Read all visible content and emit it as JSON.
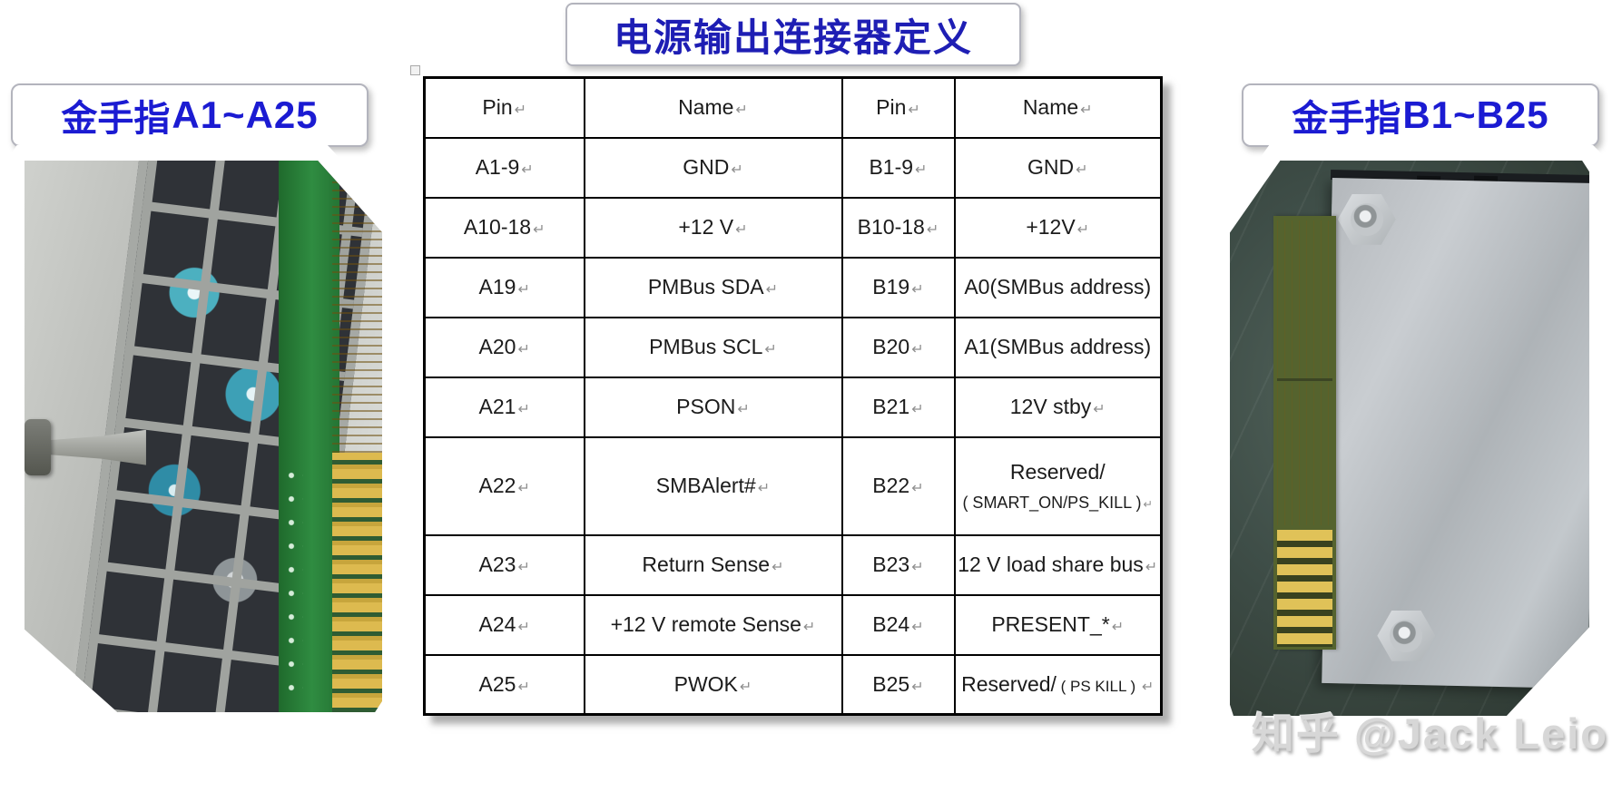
{
  "title": "电源输出连接器定义",
  "labels": {
    "left": {
      "zh": "金手指",
      "range": "A1~A25"
    },
    "right": {
      "zh": "金手指",
      "range": "B1~B25"
    }
  },
  "marks": {
    "char": "↵"
  },
  "table": {
    "headers": [
      "Pin",
      "Name",
      "Pin",
      "Name"
    ],
    "rows": [
      [
        {
          "t": "A1-9"
        },
        {
          "t": "GND"
        },
        {
          "t": "B1-9"
        },
        {
          "t": "GND"
        }
      ],
      [
        {
          "t": "A10-18"
        },
        {
          "t": "+12 V"
        },
        {
          "t": "B10-18"
        },
        {
          "t": "+12V"
        }
      ],
      [
        {
          "t": "A19"
        },
        {
          "t": "PMBus SDA"
        },
        {
          "t": "B19"
        },
        {
          "t": "A0(SMBus address)",
          "m": false
        }
      ],
      [
        {
          "t": "A20"
        },
        {
          "t": "PMBus SCL"
        },
        {
          "t": "B20"
        },
        {
          "t": "A1(SMBus address)",
          "m": false
        }
      ],
      [
        {
          "t": "A21"
        },
        {
          "t": "PSON"
        },
        {
          "t": "B21"
        },
        {
          "t": "12V stby"
        }
      ],
      [
        {
          "t": "A22"
        },
        {
          "t": "SMBAlert#"
        },
        {
          "t": "B22"
        },
        {
          "lines": [
            "Reserved/",
            "( SMART_ON/PS_KILL )"
          ],
          "tall": true
        }
      ],
      [
        {
          "t": "A23"
        },
        {
          "t": "Return Sense"
        },
        {
          "t": "B23"
        },
        {
          "t": "12 V load share bus"
        }
      ],
      [
        {
          "t": "A24"
        },
        {
          "t": "+12 V remote Sense"
        },
        {
          "t": "B24"
        },
        {
          "t": "PRESENT_*"
        }
      ],
      [
        {
          "t": "A25"
        },
        {
          "t": "PWOK"
        },
        {
          "t": "B25"
        },
        {
          "t": "Reserved/",
          "small": "( PS KILL )"
        }
      ]
    ]
  },
  "photos": {
    "left_caption_semantic": "gold-finger edge connector A1~A25 behind PSU grille",
    "right_caption_semantic": "gold-finger edge connector B1~B25 beside PSU case"
  },
  "watermark": "知乎 @Jack Leio",
  "colors": {
    "title_blue": "#1e1eb4",
    "label_blue": "#1b1bd2",
    "table_border": "#000000",
    "paragraph_mark": "#8f8f8f",
    "watermark_gray": "#d7d7d7",
    "gold": "#d8b64c",
    "pcb_green": "#2e8540",
    "desk_green": "#3e4d47"
  }
}
